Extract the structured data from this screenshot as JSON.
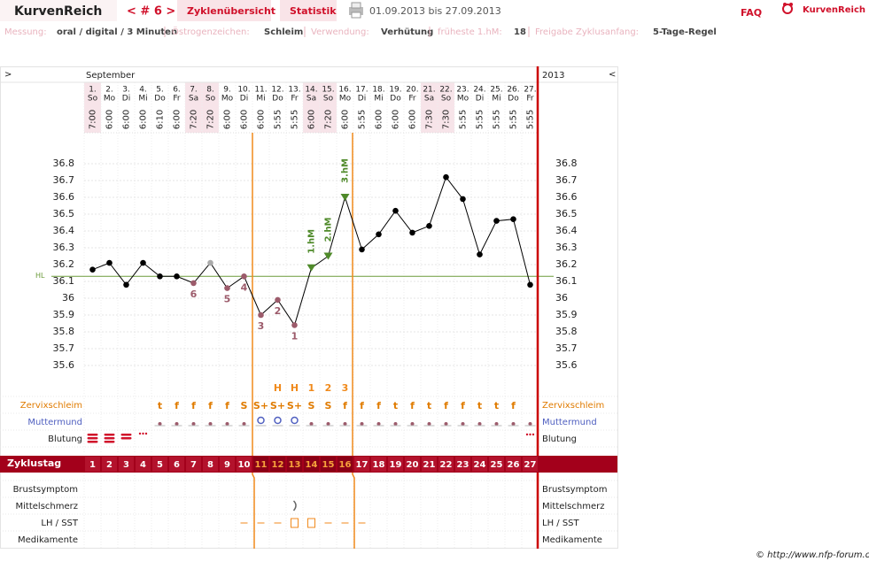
{
  "header": {
    "brand": "KurvenReich",
    "cycle_nav": "< # 6 >",
    "tabs": [
      "Zyklenübersicht",
      "Statistik"
    ],
    "period": "01.09.2013 bis 27.09.2013",
    "faq": "FAQ",
    "logo": "KurvenReich"
  },
  "info": [
    [
      "Messung:",
      "oral / digital / 3 Minuten"
    ],
    [
      "Östrogenzeichen:",
      "Schleim"
    ],
    [
      "Verwendung:",
      "Verhütung"
    ],
    [
      "früheste 1.hM:",
      "18"
    ],
    [
      "Freigabe Zyklusanfang:",
      "5-Tage-Regel"
    ]
  ],
  "chart_data": {
    "type": "line",
    "nav_left": ">",
    "nav_right": "<",
    "month": "September",
    "year": "2013",
    "categories": [
      "1.",
      "2.",
      "3.",
      "4.",
      "5.",
      "6.",
      "7.",
      "8.",
      "9.",
      "10.",
      "11.",
      "12.",
      "13.",
      "14.",
      "15.",
      "16.",
      "17.",
      "18.",
      "19.",
      "20.",
      "21.",
      "22.",
      "23.",
      "24.",
      "25.",
      "26.",
      "27."
    ],
    "weekdays": [
      "So",
      "Mo",
      "Di",
      "Mi",
      "Do",
      "Fr",
      "Sa",
      "So",
      "Mo",
      "Di",
      "Mi",
      "Do",
      "Fr",
      "Sa",
      "So",
      "Mo",
      "Di",
      "Mi",
      "Do",
      "Fr",
      "Sa",
      "So",
      "Mo",
      "Di",
      "Mi",
      "Do",
      "Fr"
    ],
    "times": [
      "7:00",
      "6:00",
      "6:00",
      "6:00",
      "6:10",
      "6:00",
      "7:20",
      "7:20",
      "6:00",
      "6:00",
      "6:00",
      "5:55",
      "5:55",
      "6:00",
      "7:20",
      "6:00",
      "5:55",
      "6:00",
      "6:00",
      "6:00",
      "7:30",
      "7:30",
      "5:55",
      "5:55",
      "5:55",
      "5:55",
      "5:55"
    ],
    "values": [
      36.17,
      36.21,
      36.08,
      36.21,
      36.13,
      36.13,
      36.09,
      36.21,
      36.06,
      36.13,
      35.9,
      35.99,
      35.84,
      36.18,
      36.25,
      36.6,
      36.29,
      36.38,
      36.52,
      36.39,
      36.43,
      36.72,
      36.59,
      36.26,
      36.46,
      36.47,
      36.08
    ],
    "marker_colors": [
      "#000",
      "#000",
      "#000",
      "#000",
      "#000",
      "#000",
      "#9c5b6b",
      "#aaaaaa",
      "#9c5b6b",
      "#9c5b6b",
      "#9c5b6b",
      "#9c5b6b",
      "#9c5b6b",
      "#4f8a2a",
      "#4f8a2a",
      "#4f8a2a",
      "#000",
      "#000",
      "#000",
      "#000",
      "#000",
      "#000",
      "#000",
      "#000",
      "#000",
      "#000",
      "#000"
    ],
    "point_labels": [
      null,
      null,
      null,
      null,
      null,
      null,
      "6",
      null,
      "5",
      "4",
      "3",
      "2",
      "1",
      null,
      null,
      null,
      null,
      null,
      null,
      null,
      null,
      null,
      null,
      null,
      null,
      null,
      null
    ],
    "peak_labels": [
      null,
      null,
      null,
      null,
      null,
      null,
      null,
      null,
      null,
      null,
      null,
      null,
      null,
      "1.hM",
      "2.hM",
      "3.hM",
      null,
      null,
      null,
      null,
      null,
      null,
      null,
      null,
      null,
      null,
      null
    ],
    "hl": 36.13,
    "hl_label": "HL",
    "hl_color": "#6b9b3a",
    "ylim": [
      35.6,
      36.8
    ],
    "yticks": [
      35.6,
      35.7,
      35.8,
      35.9,
      36,
      36.1,
      36.2,
      36.3,
      36.4,
      36.5,
      36.6,
      36.7,
      36.8
    ],
    "grid": true,
    "mucus_marks": [
      null,
      null,
      null,
      null,
      null,
      null,
      null,
      null,
      null,
      null,
      null,
      "H",
      "H",
      "1",
      "2",
      "3",
      null,
      null,
      null,
      null,
      null,
      null,
      null,
      null,
      null,
      null,
      null
    ],
    "mucus": [
      null,
      null,
      null,
      null,
      "t",
      "f",
      "f",
      "f",
      "f",
      "S",
      "S+",
      "S+",
      "S+",
      "S",
      "S",
      "f",
      "f",
      "f",
      "t",
      "f",
      "t",
      "f",
      "f",
      "t",
      "t",
      "f",
      null
    ],
    "rows": [
      "Zervixschleim",
      "Muttermund",
      "Blutung"
    ],
    "cycle_label": "Zyklustag",
    "cycle_days": [
      1,
      2,
      3,
      4,
      5,
      6,
      7,
      8,
      9,
      10,
      11,
      12,
      13,
      14,
      15,
      16,
      17,
      18,
      19,
      20,
      21,
      22,
      23,
      24,
      25,
      26,
      27
    ],
    "lower_rows": [
      "Brustsymptom",
      "Mittelschmerz",
      "LH / SST",
      "Medikamente"
    ]
  },
  "footer": "© http://www.nfp-forum.de"
}
